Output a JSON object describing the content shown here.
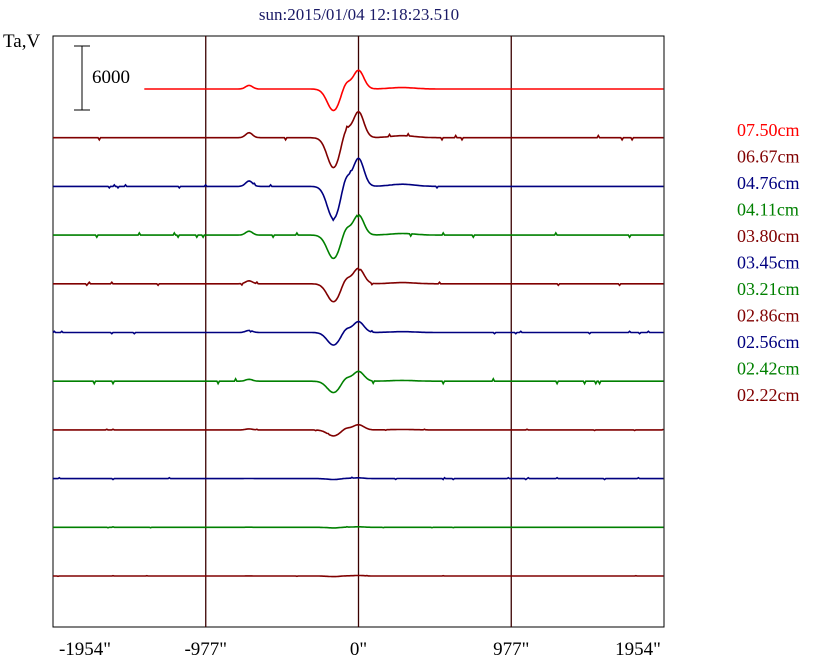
{
  "chart_data": {
    "type": "line",
    "title": "sun:2015/01/04 12:18:23.510",
    "ylabel": "Ta,V",
    "xlim": [
      -1954,
      1954
    ],
    "x_ticks": [
      -1954,
      -977,
      0,
      977,
      1954
    ],
    "x_tick_labels": [
      "-1954\"",
      "-977\"",
      "0\"",
      "977\"",
      "1954\""
    ],
    "scale_bar_label": "6000",
    "grid": "vertical lines at -977, 0, 977",
    "legend_position": "right",
    "series": [
      {
        "name": "07.50cm",
        "color": "#ff0000",
        "amp": 0.72,
        "noise": 0.0,
        "lead": -1370
      },
      {
        "name": "06.67cm",
        "color": "#800000",
        "amp": 1.0,
        "noise": 0.7,
        "lead": -1954
      },
      {
        "name": "04.76cm",
        "color": "#000080",
        "amp": 1.08,
        "noise": 0.5,
        "lead": -1954
      },
      {
        "name": "04.11cm",
        "color": "#008000",
        "amp": 0.78,
        "noise": 0.7,
        "lead": -1954
      },
      {
        "name": "03.80cm",
        "color": "#800000",
        "amp": 0.6,
        "noise": 0.5,
        "lead": -1954
      },
      {
        "name": "03.45cm",
        "color": "#000080",
        "amp": 0.42,
        "noise": 0.4,
        "lead": -1954
      },
      {
        "name": "03.21cm",
        "color": "#008000",
        "amp": 0.38,
        "noise": 0.8,
        "lead": -1954
      },
      {
        "name": "02.86cm",
        "color": "#800000",
        "amp": 0.2,
        "noise": 0.2,
        "lead": -1954
      },
      {
        "name": "02.56cm",
        "color": "#000080",
        "amp": 0.03,
        "noise": 0.3,
        "lead": -1954
      },
      {
        "name": "02.42cm",
        "color": "#008000",
        "amp": 0.02,
        "noise": 0.15,
        "lead": -1954
      },
      {
        "name": "02.22cm",
        "color": "#800000",
        "amp": 0.02,
        "noise": 0.1,
        "lead": -1954
      }
    ]
  }
}
